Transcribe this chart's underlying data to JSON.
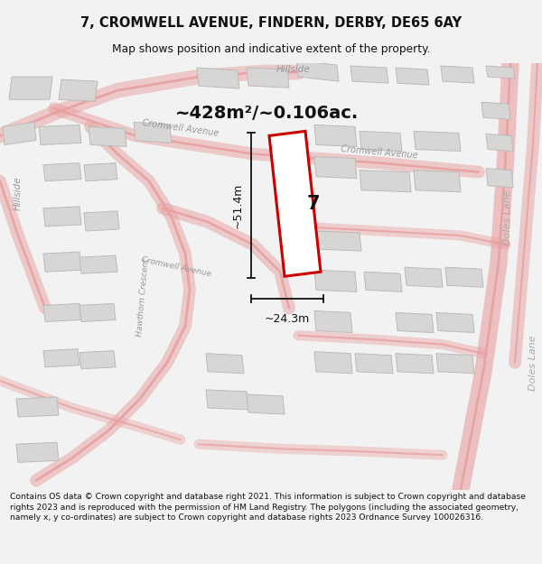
{
  "title": "7, CROMWELL AVENUE, FINDERN, DERBY, DE65 6AY",
  "subtitle": "Map shows position and indicative extent of the property.",
  "area_text": "~428m²/~0.106ac.",
  "dim_height": "~51.4m",
  "dim_width": "~24.3m",
  "property_number": "7",
  "footer": "Contains OS data © Crown copyright and database right 2021. This information is subject to Crown copyright and database rights 2023 and is reproduced with the permission of HM Land Registry. The polygons (including the associated geometry, namely x, y co-ordinates) are subject to Crown copyright and database rights 2023 Ordnance Survey 100026316.",
  "bg_color": "#f2f2f2",
  "map_bg": "#f0eeee",
  "title_bg": "#ffffff",
  "footer_bg": "#ffffff",
  "road_color": "#e8a0a0",
  "road_fill": "#f5e8e8",
  "building_color": "#d8d5d5",
  "building_outline": "#bbbbbb",
  "property_fill": "#ffffff",
  "property_outline": "#cc0000",
  "dim_line_color": "#111111",
  "text_color": "#111111",
  "road_label_color": "#999999",
  "doles_label_color": "#aaaaaa"
}
